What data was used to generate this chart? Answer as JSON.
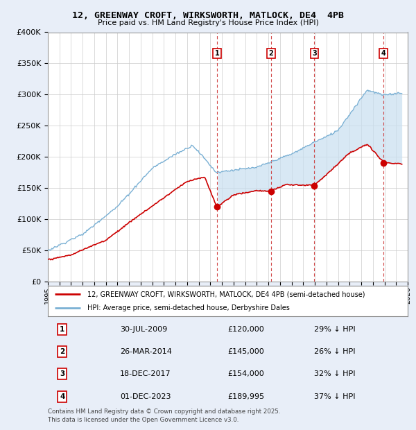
{
  "title": "12, GREENWAY CROFT, WIRKSWORTH, MATLOCK, DE4  4PB",
  "subtitle": "Price paid vs. HM Land Registry's House Price Index (HPI)",
  "legend_line1": "12, GREENWAY CROFT, WIRKSWORTH, MATLOCK, DE4 4PB (semi-detached house)",
  "legend_line2": "HPI: Average price, semi-detached house, Derbyshire Dales",
  "footnote": "Contains HM Land Registry data © Crown copyright and database right 2025.\nThis data is licensed under the Open Government Licence v3.0.",
  "transactions": [
    {
      "num": 1,
      "date": "30-JUL-2009",
      "price": 120000,
      "pct": "29%",
      "x_year": 2009.58
    },
    {
      "num": 2,
      "date": "26-MAR-2014",
      "price": 145000,
      "pct": "26%",
      "x_year": 2014.23
    },
    {
      "num": 3,
      "date": "18-DEC-2017",
      "price": 154000,
      "pct": "32%",
      "x_year": 2017.96
    },
    {
      "num": 4,
      "date": "01-DEC-2023",
      "price": 189995,
      "pct": "37%",
      "x_year": 2023.92
    }
  ],
  "background_color": "#e8eef8",
  "plot_bg_color": "#ffffff",
  "hpi_color": "#7ab0d4",
  "paid_color": "#cc0000",
  "fill_color": "#c8dff0",
  "grid_color": "#cccccc",
  "xmin": 1995,
  "xmax": 2026,
  "ymin": 0,
  "ymax": 400000,
  "yticks": [
    0,
    50000,
    100000,
    150000,
    200000,
    250000,
    300000,
    350000,
    400000
  ]
}
